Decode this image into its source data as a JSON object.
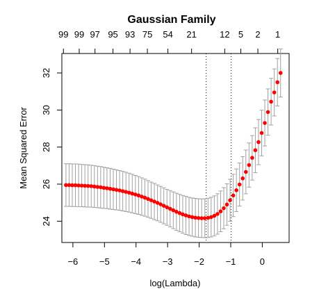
{
  "chart_data": {
    "type": "scatter",
    "title": "Gaussian Family",
    "xlabel": "log(Lambda)",
    "ylabel": "Mean Squared Error",
    "xlim": [
      -6.35,
      0.85
    ],
    "ylim": [
      22.85,
      33.05
    ],
    "x_ticks": [
      -6,
      -5,
      -4,
      -3,
      -2,
      -1,
      0
    ],
    "x_tick_labels": [
      "−6",
      "−5",
      "−4",
      "−3",
      "−2",
      "−1",
      "0"
    ],
    "y_ticks": [
      24,
      26,
      28,
      30,
      32
    ],
    "y_tick_labels": [
      "24",
      "26",
      "28",
      "30",
      "32"
    ],
    "top_axis_ticks": [
      -6.3,
      -5.8,
      -5.3,
      -4.73,
      -4.19,
      -3.64,
      -2.99,
      -2.24,
      -1.19,
      -0.68,
      -0.14,
      0.49
    ],
    "top_axis_labels": [
      "99",
      "99",
      "97",
      "95",
      "93",
      "75",
      "54",
      "21",
      "12",
      "5",
      "2",
      "1"
    ],
    "vlines": [
      -1.78,
      -0.99
    ],
    "point_color": "#ff0000",
    "errorbar_color": "#a0a0a0",
    "series": [
      {
        "x": [
          -6.22,
          -6.12,
          -6.02,
          -5.92,
          -5.82,
          -5.72,
          -5.62,
          -5.52,
          -5.42,
          -5.32,
          -5.22,
          -5.12,
          -5.02,
          -4.92,
          -4.82,
          -4.72,
          -4.62,
          -4.52,
          -4.42,
          -4.32,
          -4.22,
          -4.12,
          -4.02,
          -3.92,
          -3.82,
          -3.72,
          -3.62,
          -3.52,
          -3.42,
          -3.32,
          -3.22,
          -3.12,
          -3.02,
          -2.92,
          -2.82,
          -2.72,
          -2.62,
          -2.52,
          -2.42,
          -2.32,
          -2.22,
          -2.12,
          -2.02,
          -1.92,
          -1.82,
          -1.72,
          -1.62,
          -1.52,
          -1.42,
          -1.32,
          -1.22,
          -1.12,
          -1.02,
          -0.92,
          -0.82,
          -0.72,
          -0.62,
          -0.52,
          -0.42,
          -0.32,
          -0.22,
          -0.12,
          -0.02,
          0.08,
          0.18,
          0.28,
          0.38,
          0.48,
          0.58
        ],
        "y": [
          25.95,
          25.95,
          25.94,
          25.94,
          25.93,
          25.92,
          25.91,
          25.9,
          25.89,
          25.87,
          25.85,
          25.83,
          25.8,
          25.78,
          25.75,
          25.72,
          25.69,
          25.66,
          25.62,
          25.58,
          25.54,
          25.49,
          25.44,
          25.39,
          25.33,
          25.27,
          25.2,
          25.13,
          25.06,
          24.99,
          24.91,
          24.83,
          24.75,
          24.67,
          24.59,
          24.51,
          24.44,
          24.37,
          24.31,
          24.26,
          24.22,
          24.19,
          24.17,
          24.16,
          24.16,
          24.18,
          24.22,
          24.29,
          24.39,
          24.53,
          24.7,
          24.9,
          25.13,
          25.39,
          25.67,
          25.98,
          26.31,
          26.66,
          27.03,
          27.42,
          27.83,
          28.27,
          28.76,
          29.3,
          29.89,
          30.45,
          30.95,
          31.5,
          32.0
        ],
        "se": [
          1.15,
          1.15,
          1.15,
          1.15,
          1.15,
          1.14,
          1.14,
          1.14,
          1.13,
          1.13,
          1.12,
          1.12,
          1.11,
          1.1,
          1.1,
          1.09,
          1.08,
          1.07,
          1.07,
          1.06,
          1.05,
          1.04,
          1.03,
          1.02,
          1.01,
          1.0,
          0.99,
          0.98,
          0.98,
          0.97,
          0.97,
          0.97,
          0.97,
          0.98,
          0.99,
          1.0,
          1.01,
          1.02,
          1.03,
          1.03,
          1.03,
          1.04,
          1.04,
          1.04,
          1.05,
          1.06,
          1.07,
          1.08,
          1.09,
          1.1,
          1.11,
          1.12,
          1.13,
          1.14,
          1.15,
          1.16,
          1.17,
          1.18,
          1.19,
          1.2,
          1.21,
          1.22,
          1.23,
          1.24,
          1.25,
          1.26,
          1.27,
          1.28,
          1.3
        ]
      }
    ]
  }
}
